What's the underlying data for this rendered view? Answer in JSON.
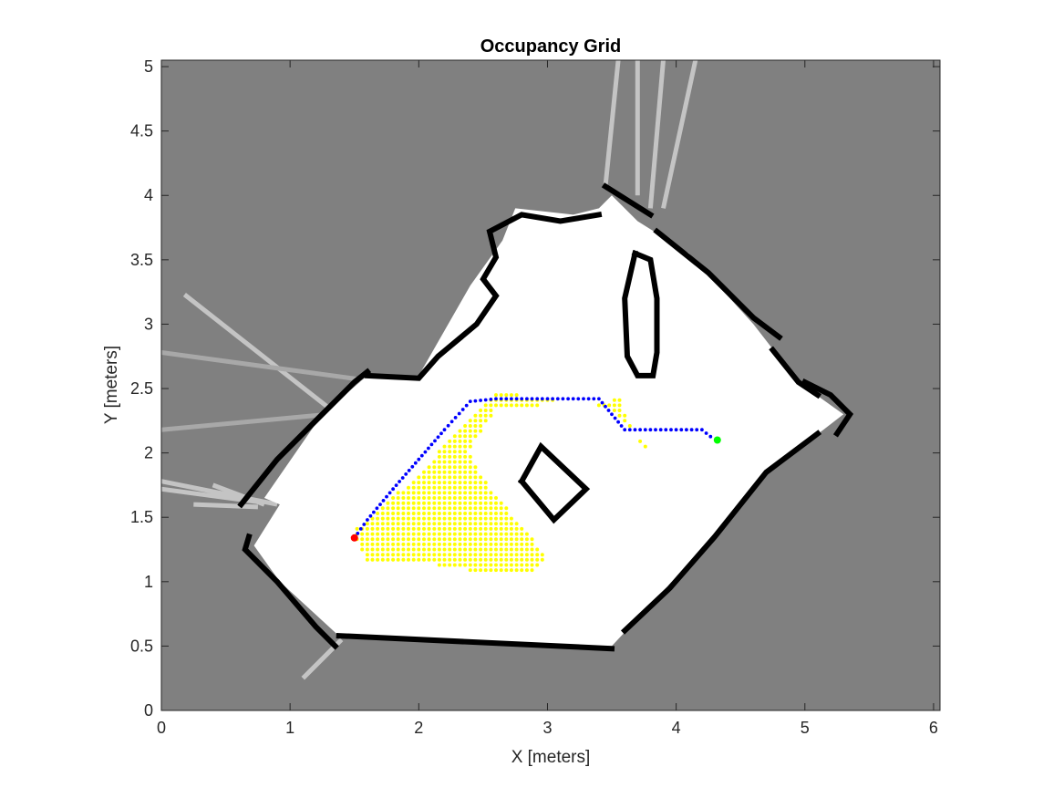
{
  "chart_data": {
    "type": "scatter",
    "title": "Occupancy Grid",
    "xlabel": "X [meters]",
    "ylabel": "Y [meters]",
    "xlim": [
      0,
      6.05
    ],
    "ylim": [
      0,
      5.05
    ],
    "xticks": [
      "0",
      "1",
      "2",
      "3",
      "4",
      "5",
      "6"
    ],
    "yticks": [
      "0",
      "0.5",
      "1",
      "1.5",
      "2",
      "2.5",
      "3",
      "3.5",
      "4",
      "4.5",
      "5"
    ],
    "grid": false,
    "legend": "none",
    "colors": {
      "unknown": "#808080",
      "free": "#ffffff",
      "occupied": "#000000",
      "explored": "#ffff00",
      "path": "#0000ff",
      "start": "#ff0000",
      "goal": "#00ff00"
    },
    "occupancy": {
      "free_region": [
        [
          0.72,
          1.28
        ],
        [
          0.92,
          1.6
        ],
        [
          0.8,
          1.65
        ],
        [
          1.25,
          2.3
        ],
        [
          1.6,
          2.6
        ],
        [
          2.0,
          2.6
        ],
        [
          2.4,
          3.3
        ],
        [
          2.65,
          3.65
        ],
        [
          2.75,
          3.9
        ],
        [
          3.2,
          3.85
        ],
        [
          3.4,
          3.9
        ],
        [
          3.5,
          4.0
        ],
        [
          3.7,
          3.8
        ],
        [
          4.1,
          3.55
        ],
        [
          4.6,
          3.0
        ],
        [
          4.95,
          2.55
        ],
        [
          5.3,
          2.3
        ],
        [
          4.65,
          1.8
        ],
        [
          4.2,
          1.25
        ],
        [
          3.5,
          0.5
        ],
        [
          1.4,
          0.56
        ],
        [
          0.92,
          1.0
        ]
      ],
      "walls": [
        [
          [
            0.62,
            1.6
          ],
          [
            0.9,
            1.95
          ],
          [
            1.2,
            2.25
          ],
          [
            1.5,
            2.55
          ],
          [
            1.6,
            2.63
          ]
        ],
        [
          [
            1.6,
            2.6
          ],
          [
            2.0,
            2.58
          ],
          [
            2.15,
            2.75
          ],
          [
            2.45,
            3.0
          ],
          [
            2.6,
            3.22
          ],
          [
            2.5,
            3.35
          ],
          [
            2.6,
            3.52
          ],
          [
            2.55,
            3.72
          ],
          [
            2.8,
            3.85
          ],
          [
            3.1,
            3.8
          ],
          [
            3.4,
            3.85
          ]
        ],
        [
          [
            3.45,
            4.07
          ],
          [
            3.8,
            3.85
          ]
        ],
        [
          [
            3.85,
            3.72
          ],
          [
            4.25,
            3.4
          ],
          [
            4.6,
            3.05
          ],
          [
            4.8,
            2.9
          ]
        ],
        [
          [
            4.75,
            2.8
          ],
          [
            4.95,
            2.55
          ],
          [
            5.1,
            2.45
          ]
        ],
        [
          [
            5.0,
            2.55
          ],
          [
            5.2,
            2.45
          ],
          [
            5.35,
            2.3
          ],
          [
            5.25,
            2.15
          ]
        ],
        [
          [
            5.1,
            2.15
          ],
          [
            4.7,
            1.85
          ],
          [
            4.3,
            1.35
          ],
          [
            3.95,
            0.95
          ],
          [
            3.6,
            0.62
          ]
        ],
        [
          [
            3.5,
            0.48
          ],
          [
            1.38,
            0.58
          ]
        ],
        [
          [
            1.35,
            0.5
          ],
          [
            1.2,
            0.65
          ],
          [
            0.9,
            1.0
          ],
          [
            0.65,
            1.25
          ],
          [
            0.68,
            1.35
          ]
        ],
        [
          [
            3.68,
            3.55
          ],
          [
            3.6,
            3.2
          ],
          [
            3.62,
            2.75
          ],
          [
            3.7,
            2.6
          ],
          [
            3.82,
            2.6
          ],
          [
            3.85,
            2.78
          ],
          [
            3.85,
            3.2
          ],
          [
            3.8,
            3.5
          ],
          [
            3.68,
            3.55
          ]
        ],
        [
          [
            2.8,
            1.78
          ],
          [
            2.95,
            2.05
          ],
          [
            3.3,
            1.72
          ],
          [
            3.05,
            1.48
          ],
          [
            2.8,
            1.78
          ]
        ]
      ],
      "rays": [
        [
          [
            0.18,
            3.23
          ],
          [
            1.3,
            2.35
          ]
        ],
        [
          [
            0.0,
            2.78
          ],
          [
            1.7,
            2.55
          ]
        ],
        [
          [
            0.0,
            2.18
          ],
          [
            1.3,
            2.3
          ]
        ],
        [
          [
            0.0,
            1.78
          ],
          [
            0.9,
            1.6
          ]
        ],
        [
          [
            0.0,
            1.72
          ],
          [
            0.75,
            1.62
          ]
        ],
        [
          [
            0.4,
            1.75
          ],
          [
            0.8,
            1.6
          ]
        ],
        [
          [
            0.25,
            1.6
          ],
          [
            0.75,
            1.58
          ]
        ],
        [
          [
            1.1,
            0.25
          ],
          [
            1.4,
            0.55
          ]
        ],
        [
          [
            3.45,
            4.07
          ],
          [
            3.55,
            5.05
          ]
        ],
        [
          [
            3.7,
            4.0
          ],
          [
            3.7,
            5.05
          ]
        ],
        [
          [
            3.9,
            3.9
          ],
          [
            4.15,
            5.05
          ]
        ],
        [
          [
            3.8,
            3.9
          ],
          [
            3.9,
            5.05
          ]
        ]
      ]
    },
    "explored_region": [
      [
        1.48,
        1.38
      ],
      [
        1.6,
        1.15
      ],
      [
        2.0,
        1.15
      ],
      [
        2.4,
        1.09
      ],
      [
        2.9,
        1.09
      ],
      [
        3.0,
        1.18
      ],
      [
        2.85,
        1.38
      ],
      [
        2.55,
        1.72
      ],
      [
        2.38,
        2.02
      ],
      [
        2.62,
        2.36
      ],
      [
        3.25,
        2.38
      ],
      [
        3.56,
        2.42
      ],
      [
        3.7,
        2.1
      ],
      [
        3.78,
        2.03
      ],
      [
        3.58,
        2.25
      ],
      [
        3.45,
        2.36
      ],
      [
        2.62,
        2.47
      ],
      [
        2.48,
        2.35
      ],
      [
        2.15,
        2.0
      ],
      [
        1.85,
        1.7
      ],
      [
        1.62,
        1.5
      ]
    ],
    "series": [
      {
        "x": [
          1.5,
          1.6,
          1.8,
          2.0,
          2.2,
          2.4,
          2.6,
          3.0,
          3.4,
          3.6,
          4.0,
          4.2,
          4.3
        ],
        "y": [
          1.34,
          1.48,
          1.72,
          1.95,
          2.18,
          2.4,
          2.42,
          2.42,
          2.42,
          2.18,
          2.18,
          2.18,
          2.1
        ]
      }
    ],
    "start": {
      "x": 1.5,
      "y": 1.34
    },
    "goal": {
      "x": 4.32,
      "y": 2.1
    }
  }
}
